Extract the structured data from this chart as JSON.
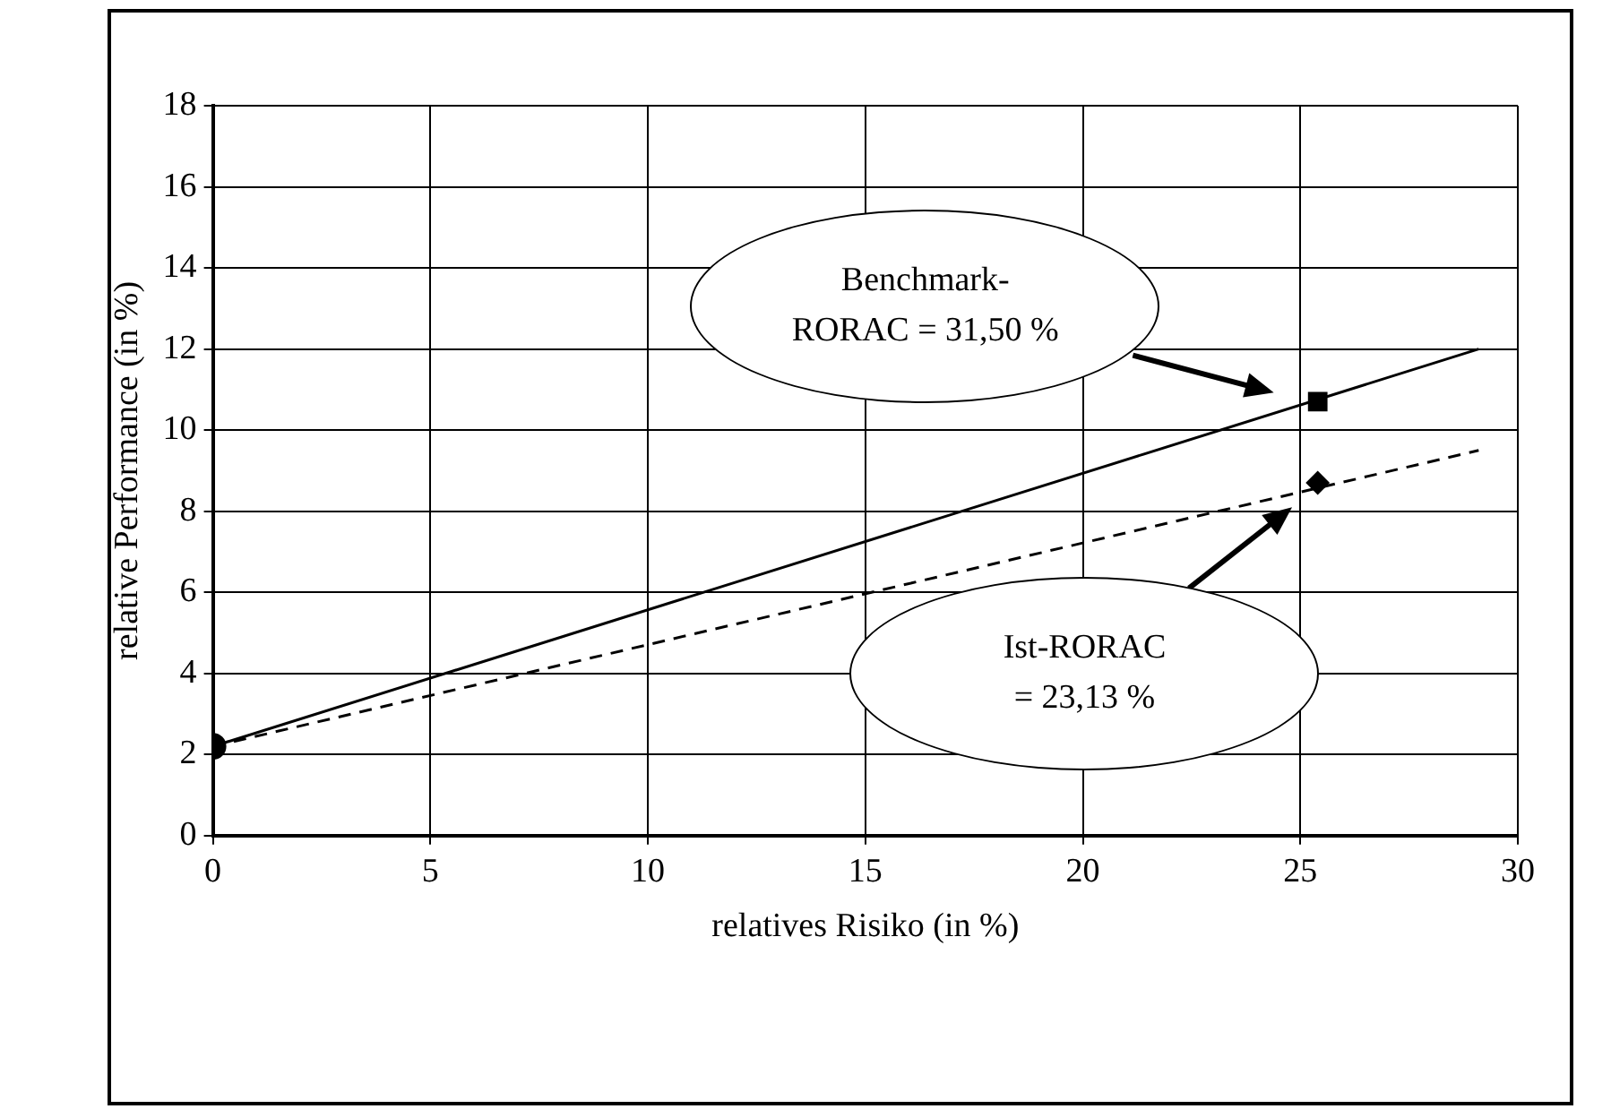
{
  "chart_data": {
    "type": "line",
    "xlabel": "relatives Risiko (in %)",
    "ylabel": "relative Performance (in %)",
    "xlim": [
      0,
      30
    ],
    "xticks": [
      0,
      5,
      10,
      15,
      20,
      25,
      30
    ],
    "ylim": [
      0,
      18
    ],
    "yticks": [
      0,
      2,
      4,
      6,
      8,
      10,
      12,
      14,
      16,
      18
    ],
    "grid": true,
    "legend": false,
    "series": [
      {
        "x": [
          0,
          29.1
        ],
        "values": [
          2.2,
          12.0
        ],
        "color": "#000000",
        "line_style": "solid",
        "marker": "none"
      },
      {
        "x": [
          0,
          29.1
        ],
        "values": [
          2.2,
          9.5
        ],
        "color": "#000000",
        "line_style": "dashed",
        "marker": "none"
      },
      {
        "type": "scatter",
        "x": [
          25.4
        ],
        "values": [
          10.7
        ],
        "color": "#000000",
        "marker": "square"
      },
      {
        "type": "scatter",
        "x": [
          25.4
        ],
        "values": [
          8.7
        ],
        "color": "#000000",
        "marker": "diamond"
      },
      {
        "type": "scatter",
        "x": [
          0
        ],
        "values": [
          2.2
        ],
        "color": "#000000",
        "marker": "circle"
      }
    ],
    "annotations": [
      "Benchmark-\nRORAC = 31,50 %",
      "Ist-RORAC\n= 23,13 %"
    ]
  }
}
